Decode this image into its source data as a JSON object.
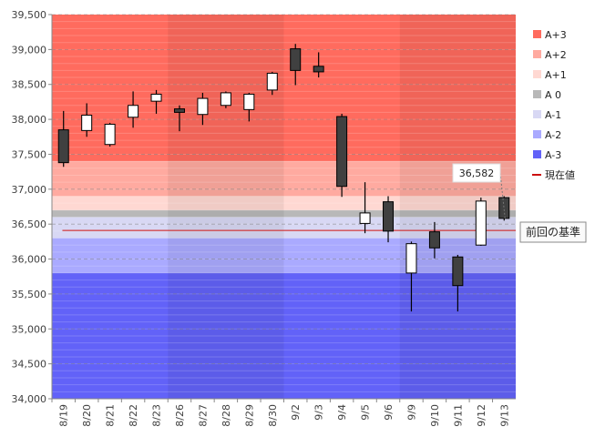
{
  "chart_data": {
    "type": "candlestick",
    "title": "",
    "xlabel": "",
    "ylabel": "",
    "ylim": [
      34000,
      39500
    ],
    "y_ticks": [
      34000,
      34500,
      35000,
      35500,
      36000,
      36500,
      37000,
      37500,
      38000,
      38500,
      39000,
      39500
    ],
    "y_tick_labels": [
      "34,000",
      "34,500",
      "35,000",
      "35,500",
      "36,000",
      "36,500",
      "37,000",
      "37,500",
      "38,000",
      "38,500",
      "39,000",
      "39,500"
    ],
    "categories": [
      "8/19",
      "8/20",
      "8/21",
      "8/22",
      "8/23",
      "8/26",
      "8/27",
      "8/28",
      "8/29",
      "8/30",
      "9/2",
      "9/3",
      "9/4",
      "9/5",
      "9/6",
      "9/9",
      "9/10",
      "9/11",
      "9/12",
      "9/13"
    ],
    "ohlc": [
      {
        "o": 37850,
        "h": 38120,
        "l": 37320,
        "c": 37380
      },
      {
        "o": 37840,
        "h": 38230,
        "l": 37750,
        "c": 38060
      },
      {
        "o": 37640,
        "h": 37950,
        "l": 37610,
        "c": 37930
      },
      {
        "o": 38030,
        "h": 38400,
        "l": 37880,
        "c": 38200
      },
      {
        "o": 38260,
        "h": 38420,
        "l": 38080,
        "c": 38360
      },
      {
        "o": 38150,
        "h": 38200,
        "l": 37830,
        "c": 38100
      },
      {
        "o": 38070,
        "h": 38380,
        "l": 37920,
        "c": 38300
      },
      {
        "o": 38200,
        "h": 38400,
        "l": 38160,
        "c": 38380
      },
      {
        "o": 38140,
        "h": 38380,
        "l": 37970,
        "c": 38360
      },
      {
        "o": 38420,
        "h": 38680,
        "l": 38350,
        "c": 38660
      },
      {
        "o": 39010,
        "h": 39080,
        "l": 38490,
        "c": 38700
      },
      {
        "o": 38760,
        "h": 38960,
        "l": 38600,
        "c": 38680
      },
      {
        "o": 38040,
        "h": 38080,
        "l": 36890,
        "c": 37040
      },
      {
        "o": 36510,
        "h": 37100,
        "l": 36370,
        "c": 36660
      },
      {
        "o": 36820,
        "h": 36900,
        "l": 36240,
        "c": 36400
      },
      {
        "o": 35800,
        "h": 36250,
        "l": 35250,
        "c": 36220
      },
      {
        "o": 36390,
        "h": 36530,
        "l": 36010,
        "c": 36160
      },
      {
        "o": 36030,
        "h": 36060,
        "l": 35250,
        "c": 35620
      },
      {
        "o": 36200,
        "h": 36880,
        "l": 36190,
        "c": 36830
      },
      {
        "o": 36880,
        "h": 36900,
        "l": 36550,
        "c": 36582
      }
    ],
    "bands": [
      {
        "name": "A+3",
        "from": 37400,
        "to": 39500,
        "color": "#ff6b5e"
      },
      {
        "name": "A+2",
        "from": 36900,
        "to": 37400,
        "color": "#ffaaa0"
      },
      {
        "name": "A+1",
        "from": 36700,
        "to": 36900,
        "color": "#ffd8d2"
      },
      {
        "name": "A 0",
        "from": 36600,
        "to": 36700,
        "color": "#b8b8b8"
      },
      {
        "name": "A-1",
        "from": 36300,
        "to": 36600,
        "color": "#d8d8f4"
      },
      {
        "name": "A-2",
        "from": 35800,
        "to": 36300,
        "color": "#aaaaff"
      },
      {
        "name": "A-3",
        "from": 34000,
        "to": 35800,
        "color": "#6262f8"
      }
    ],
    "current_value": 36582,
    "current_value_label": "36,582",
    "current_line_color": "#cc1010",
    "reference_level": 36410,
    "reference_label": "前回の基準",
    "legend": {
      "position": "right",
      "items": [
        {
          "label": "A+3",
          "color": "#ff6b5e",
          "kind": "box"
        },
        {
          "label": "A+2",
          "color": "#ffaaa0",
          "kind": "box"
        },
        {
          "label": "A+1",
          "color": "#ffd8d2",
          "kind": "box"
        },
        {
          "label": "A 0",
          "color": "#b8b8b8",
          "kind": "box"
        },
        {
          "label": "A-1",
          "color": "#d8d8f4",
          "kind": "box"
        },
        {
          "label": "A-2",
          "color": "#aaaaff",
          "kind": "box"
        },
        {
          "label": "A-3",
          "color": "#6262f8",
          "kind": "box"
        },
        {
          "label": "現在値",
          "color": "#cc1010",
          "kind": "line"
        }
      ]
    },
    "column_shading": {
      "darker_groups": [
        [
          5,
          9
        ],
        [
          15,
          19
        ]
      ]
    }
  }
}
